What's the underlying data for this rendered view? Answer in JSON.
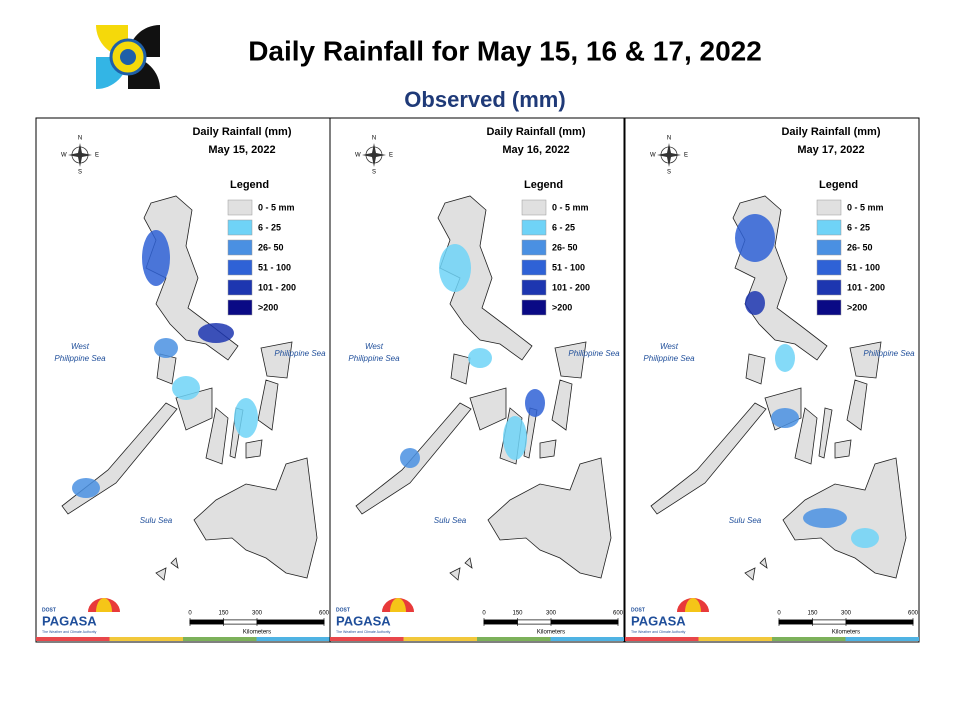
{
  "header": {
    "title": "Daily Rainfall for May 15, 16 & 17, 2022",
    "subtitle": "Observed (mm)"
  },
  "panels": [
    {
      "title": "Daily Rainfall (mm)",
      "date": "May 15, 2022",
      "compass": {
        "n": "N",
        "s": "S",
        "e": "E",
        "w": "W"
      },
      "legend": {
        "title": "Legend",
        "items": [
          {
            "label": "0 - 5 mm",
            "color": "#e0e0e0"
          },
          {
            "label": "6 - 25",
            "color": "#6fd3f7"
          },
          {
            "label": "26- 50",
            "color": "#4a90e2"
          },
          {
            "label": "51 - 100",
            "color": "#2f62d6"
          },
          {
            "label": "101 - 200",
            "color": "#1d36b0"
          },
          {
            "label": ">200",
            "color": "#0a0a85"
          }
        ]
      },
      "seas": {
        "west": [
          "West",
          "Philippine Sea"
        ],
        "east": "Philippine Sea",
        "sulu": "Sulu Sea"
      },
      "scale": {
        "ticks": [
          0,
          150,
          300,
          600
        ],
        "unit": "Kilometers"
      },
      "logo": {
        "agency": "DOST",
        "name": "PAGASA",
        "tagline": "The Weather and Climate Authority"
      }
    },
    {
      "title": "Daily Rainfall (mm)",
      "date": "May 16, 2022",
      "compass": {
        "n": "N",
        "s": "S",
        "e": "E",
        "w": "W"
      },
      "legend": {
        "title": "Legend",
        "items": [
          {
            "label": "0 - 5 mm",
            "color": "#e0e0e0"
          },
          {
            "label": "6 - 25",
            "color": "#6fd3f7"
          },
          {
            "label": "26- 50",
            "color": "#4a90e2"
          },
          {
            "label": "51 - 100",
            "color": "#2f62d6"
          },
          {
            "label": "101 - 200",
            "color": "#1d36b0"
          },
          {
            "label": ">200",
            "color": "#0a0a85"
          }
        ]
      },
      "seas": {
        "west": [
          "West",
          "Philippine Sea"
        ],
        "east": "Philippine Sea",
        "sulu": "Sulu Sea"
      },
      "scale": {
        "ticks": [
          0,
          150,
          300,
          600
        ],
        "unit": "Kilometers"
      },
      "logo": {
        "agency": "DOST",
        "name": "PAGASA",
        "tagline": "The Weather and Climate Authority"
      }
    },
    {
      "title": "Daily Rainfall (mm)",
      "date": "May 17, 2022",
      "compass": {
        "n": "N",
        "s": "S",
        "e": "E",
        "w": "W"
      },
      "legend": {
        "title": "Legend",
        "items": [
          {
            "label": "0 - 5 mm",
            "color": "#e0e0e0"
          },
          {
            "label": "6 - 25",
            "color": "#6fd3f7"
          },
          {
            "label": "26- 50",
            "color": "#4a90e2"
          },
          {
            "label": "51 - 100",
            "color": "#2f62d6"
          },
          {
            "label": "101 - 200",
            "color": "#1d36b0"
          },
          {
            "label": ">200",
            "color": "#0a0a85"
          }
        ]
      },
      "seas": {
        "west": [
          "West",
          "Philippine Sea"
        ],
        "east": "Philippine Sea",
        "sulu": "Sulu Sea"
      },
      "scale": {
        "ticks": [
          0,
          150,
          300,
          600
        ],
        "unit": "Kilometers"
      },
      "logo": {
        "agency": "DOST",
        "name": "PAGASA",
        "tagline": "The Weather and Climate Authority"
      }
    }
  ]
}
